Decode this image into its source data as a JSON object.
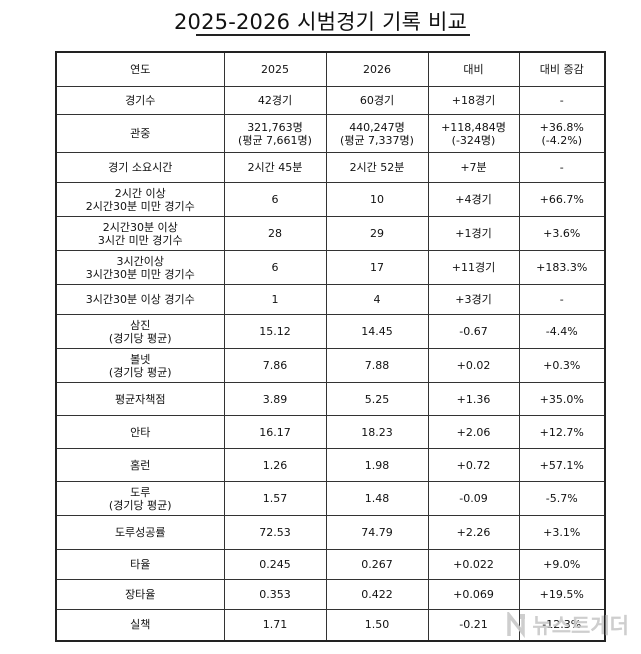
{
  "title": "2025-2026 시범경기 기록 비교",
  "table": {
    "headers": [
      "연도",
      "2025",
      "2026",
      "대비",
      "대비 증감"
    ],
    "rows": [
      {
        "label": "경기수",
        "v2025": "42경기",
        "v2026": "60경기",
        "diff": "+18경기",
        "pct": "-"
      },
      {
        "label": "관중",
        "v2025": "321,763명\n(평균 7,661명)",
        "v2026": "440,247명\n(평균 7,337명)",
        "diff": "+118,484명\n(-324명)",
        "pct": "+36.8%\n(-4.2%)"
      },
      {
        "label": "경기 소요시간",
        "v2025": "2시간 45분",
        "v2026": "2시간 52분",
        "diff": "+7분",
        "pct": "-"
      },
      {
        "label": "2시간 이상\n2시간30분 미만 경기수",
        "v2025": "6",
        "v2026": "10",
        "diff": "+4경기",
        "pct": "+66.7%"
      },
      {
        "label": "2시간30분 이상\n3시간 미만 경기수",
        "v2025": "28",
        "v2026": "29",
        "diff": "+1경기",
        "pct": "+3.6%"
      },
      {
        "label": "3시간이상\n3시간30분 미만 경기수",
        "v2025": "6",
        "v2026": "17",
        "diff": "+11경기",
        "pct": "+183.3%"
      },
      {
        "label": "3시간30분 이상 경기수",
        "v2025": "1",
        "v2026": "4",
        "diff": "+3경기",
        "pct": "-"
      },
      {
        "label": "삼진\n(경기당 평균)",
        "v2025": "15.12",
        "v2026": "14.45",
        "diff": "-0.67",
        "pct": "-4.4%"
      },
      {
        "label": "볼넷\n(경기당 평균)",
        "v2025": "7.86",
        "v2026": "7.88",
        "diff": "+0.02",
        "pct": "+0.3%"
      },
      {
        "label": "평균자책점",
        "v2025": "3.89",
        "v2026": "5.25",
        "diff": "+1.36",
        "pct": "+35.0%"
      },
      {
        "label": "안타",
        "v2025": "16.17",
        "v2026": "18.23",
        "diff": "+2.06",
        "pct": "+12.7%"
      },
      {
        "label": "홈런",
        "v2025": "1.26",
        "v2026": "1.98",
        "diff": "+0.72",
        "pct": "+57.1%"
      },
      {
        "label": "도루\n(경기당 평균)",
        "v2025": "1.57",
        "v2026": "1.48",
        "diff": "-0.09",
        "pct": "-5.7%"
      },
      {
        "label": "도루성공률",
        "v2025": "72.53",
        "v2026": "74.79",
        "diff": "+2.26",
        "pct": "+3.1%"
      },
      {
        "label": "타율",
        "v2025": "0.245",
        "v2026": "0.267",
        "diff": "+0.022",
        "pct": "+9.0%"
      },
      {
        "label": "장타율",
        "v2025": "0.353",
        "v2026": "0.422",
        "diff": "+0.069",
        "pct": "+19.5%"
      },
      {
        "label": "실책",
        "v2025": "1.71",
        "v2026": "1.50",
        "diff": "-0.21",
        "pct": "-12.3%"
      }
    ]
  },
  "watermark": {
    "text": "뉴스트게더",
    "logo_icon": "n-logo-icon"
  }
}
